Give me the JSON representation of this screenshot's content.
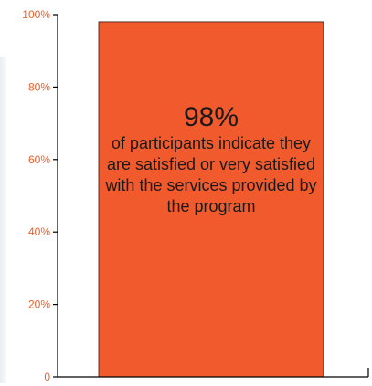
{
  "chart_data": {
    "type": "bar",
    "categories": [
      ""
    ],
    "values": [
      98
    ],
    "ylim": [
      0,
      100
    ],
    "yticks": [
      "0",
      "20%",
      "40%",
      "60%",
      "80%",
      "100%"
    ],
    "ytick_values": [
      0,
      20,
      40,
      60,
      80,
      100
    ],
    "grid": false,
    "bar_color": "#f05a2d",
    "tick_color": "#e8602d",
    "axis_color": "#000000",
    "annotation": {
      "value_text": "98%",
      "caption": "of participants indicate they are satisfied or very satisfied with the services provided by the program"
    }
  }
}
